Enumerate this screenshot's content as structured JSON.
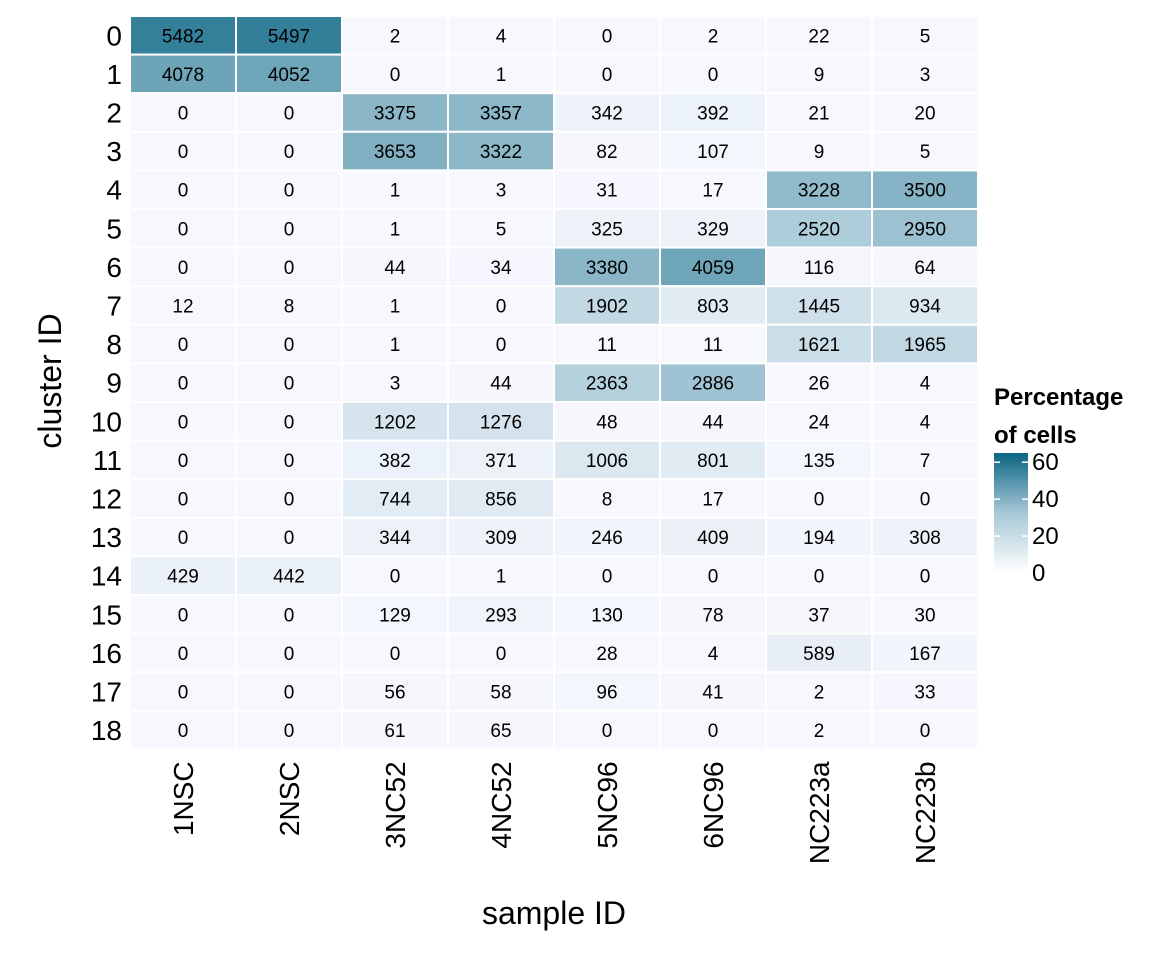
{
  "chart_data": {
    "type": "heatmap",
    "xlabel": "sample ID",
    "ylabel": "cluster ID",
    "legend": {
      "title_line1": "Percentage",
      "title_line2": "of cells",
      "ticks": [
        0,
        20,
        40,
        60
      ],
      "range": [
        0,
        65
      ],
      "placement": "right",
      "color_low": "#ffffff",
      "color_high": "#0a6584"
    },
    "x_categories": [
      "1NSC",
      "2NSC",
      "3NC52",
      "4NC52",
      "5NC96",
      "6NC96",
      "NC223a",
      "NC223b"
    ],
    "y_categories": [
      "0",
      "1",
      "2",
      "3",
      "4",
      "5",
      "6",
      "7",
      "8",
      "9",
      "10",
      "11",
      "12",
      "13",
      "14",
      "15",
      "16",
      "17",
      "18"
    ],
    "counts": [
      [
        5482,
        5497,
        2,
        4,
        0,
        2,
        22,
        5
      ],
      [
        4078,
        4052,
        0,
        1,
        0,
        0,
        9,
        3
      ],
      [
        0,
        0,
        3375,
        3357,
        342,
        392,
        21,
        20
      ],
      [
        0,
        0,
        3653,
        3322,
        82,
        107,
        9,
        5
      ],
      [
        0,
        0,
        1,
        3,
        31,
        17,
        3228,
        3500
      ],
      [
        0,
        0,
        1,
        5,
        325,
        329,
        2520,
        2950
      ],
      [
        0,
        0,
        44,
        34,
        3380,
        4059,
        116,
        64
      ],
      [
        12,
        8,
        1,
        0,
        1902,
        803,
        1445,
        934
      ],
      [
        0,
        0,
        1,
        0,
        11,
        11,
        1621,
        1965
      ],
      [
        0,
        0,
        3,
        44,
        2363,
        2886,
        26,
        4
      ],
      [
        0,
        0,
        1202,
        1276,
        48,
        44,
        24,
        4
      ],
      [
        0,
        0,
        382,
        371,
        1006,
        801,
        135,
        7
      ],
      [
        0,
        0,
        744,
        856,
        8,
        17,
        0,
        0
      ],
      [
        0,
        0,
        344,
        309,
        246,
        409,
        194,
        308
      ],
      [
        429,
        442,
        0,
        1,
        0,
        0,
        0,
        0
      ],
      [
        0,
        0,
        129,
        293,
        130,
        78,
        37,
        30
      ],
      [
        0,
        0,
        0,
        0,
        28,
        4,
        589,
        167
      ],
      [
        0,
        0,
        56,
        58,
        96,
        41,
        2,
        33
      ],
      [
        0,
        0,
        61,
        65,
        0,
        0,
        2,
        0
      ]
    ],
    "cell_text_color": "#000000",
    "cell_min_color": "#f7f8fe",
    "grid": false
  }
}
